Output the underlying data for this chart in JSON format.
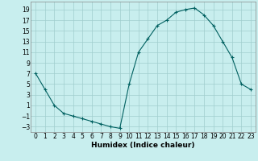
{
  "x": [
    0,
    1,
    2,
    3,
    4,
    5,
    6,
    7,
    8,
    9,
    10,
    11,
    12,
    13,
    14,
    15,
    16,
    17,
    18,
    19,
    20,
    21,
    22,
    23
  ],
  "y": [
    7,
    4,
    1,
    -0.5,
    -1,
    -1.5,
    -2,
    -2.5,
    -3,
    -3.3,
    5,
    11,
    13.5,
    16,
    17,
    18.5,
    19,
    19.3,
    18,
    16,
    13,
    10,
    5,
    4
  ],
  "line_color": "#006060",
  "marker": "+",
  "marker_size": 3,
  "marker_linewidth": 0.8,
  "line_width": 0.8,
  "bg_color": "#c8eeee",
  "grid_color": "#a0cece",
  "xlabel": "Humidex (Indice chaleur)",
  "xlim": [
    -0.5,
    23.5
  ],
  "ylim": [
    -4,
    20.5
  ],
  "yticks": [
    -3,
    -1,
    1,
    3,
    5,
    7,
    9,
    11,
    13,
    15,
    17,
    19
  ],
  "xticks": [
    0,
    1,
    2,
    3,
    4,
    5,
    6,
    7,
    8,
    9,
    10,
    11,
    12,
    13,
    14,
    15,
    16,
    17,
    18,
    19,
    20,
    21,
    22,
    23
  ],
  "tick_fontsize": 5.5,
  "xlabel_fontsize": 6.5,
  "spine_color": "#888888"
}
